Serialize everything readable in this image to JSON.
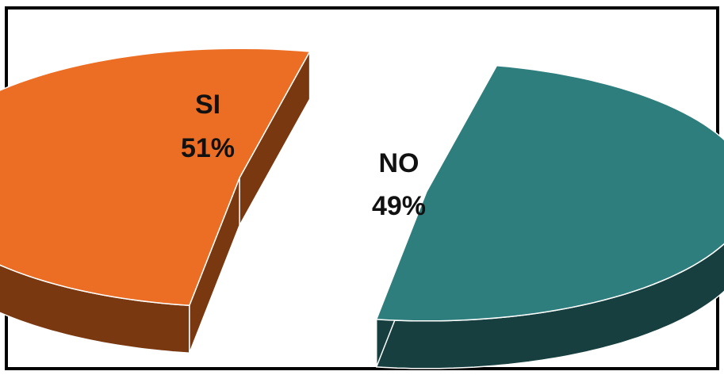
{
  "chart_data": {
    "type": "pie",
    "style": "3d-exploded",
    "slices": [
      {
        "label": "SI",
        "value": 51,
        "value_label": "51%",
        "color": "#EC6E24",
        "side_color": "#7A3810"
      },
      {
        "label": "NO",
        "value": 49,
        "value_label": "49%",
        "color": "#2E7E7E",
        "side_color": "#173F3F"
      }
    ],
    "title": "",
    "legend": "none"
  }
}
